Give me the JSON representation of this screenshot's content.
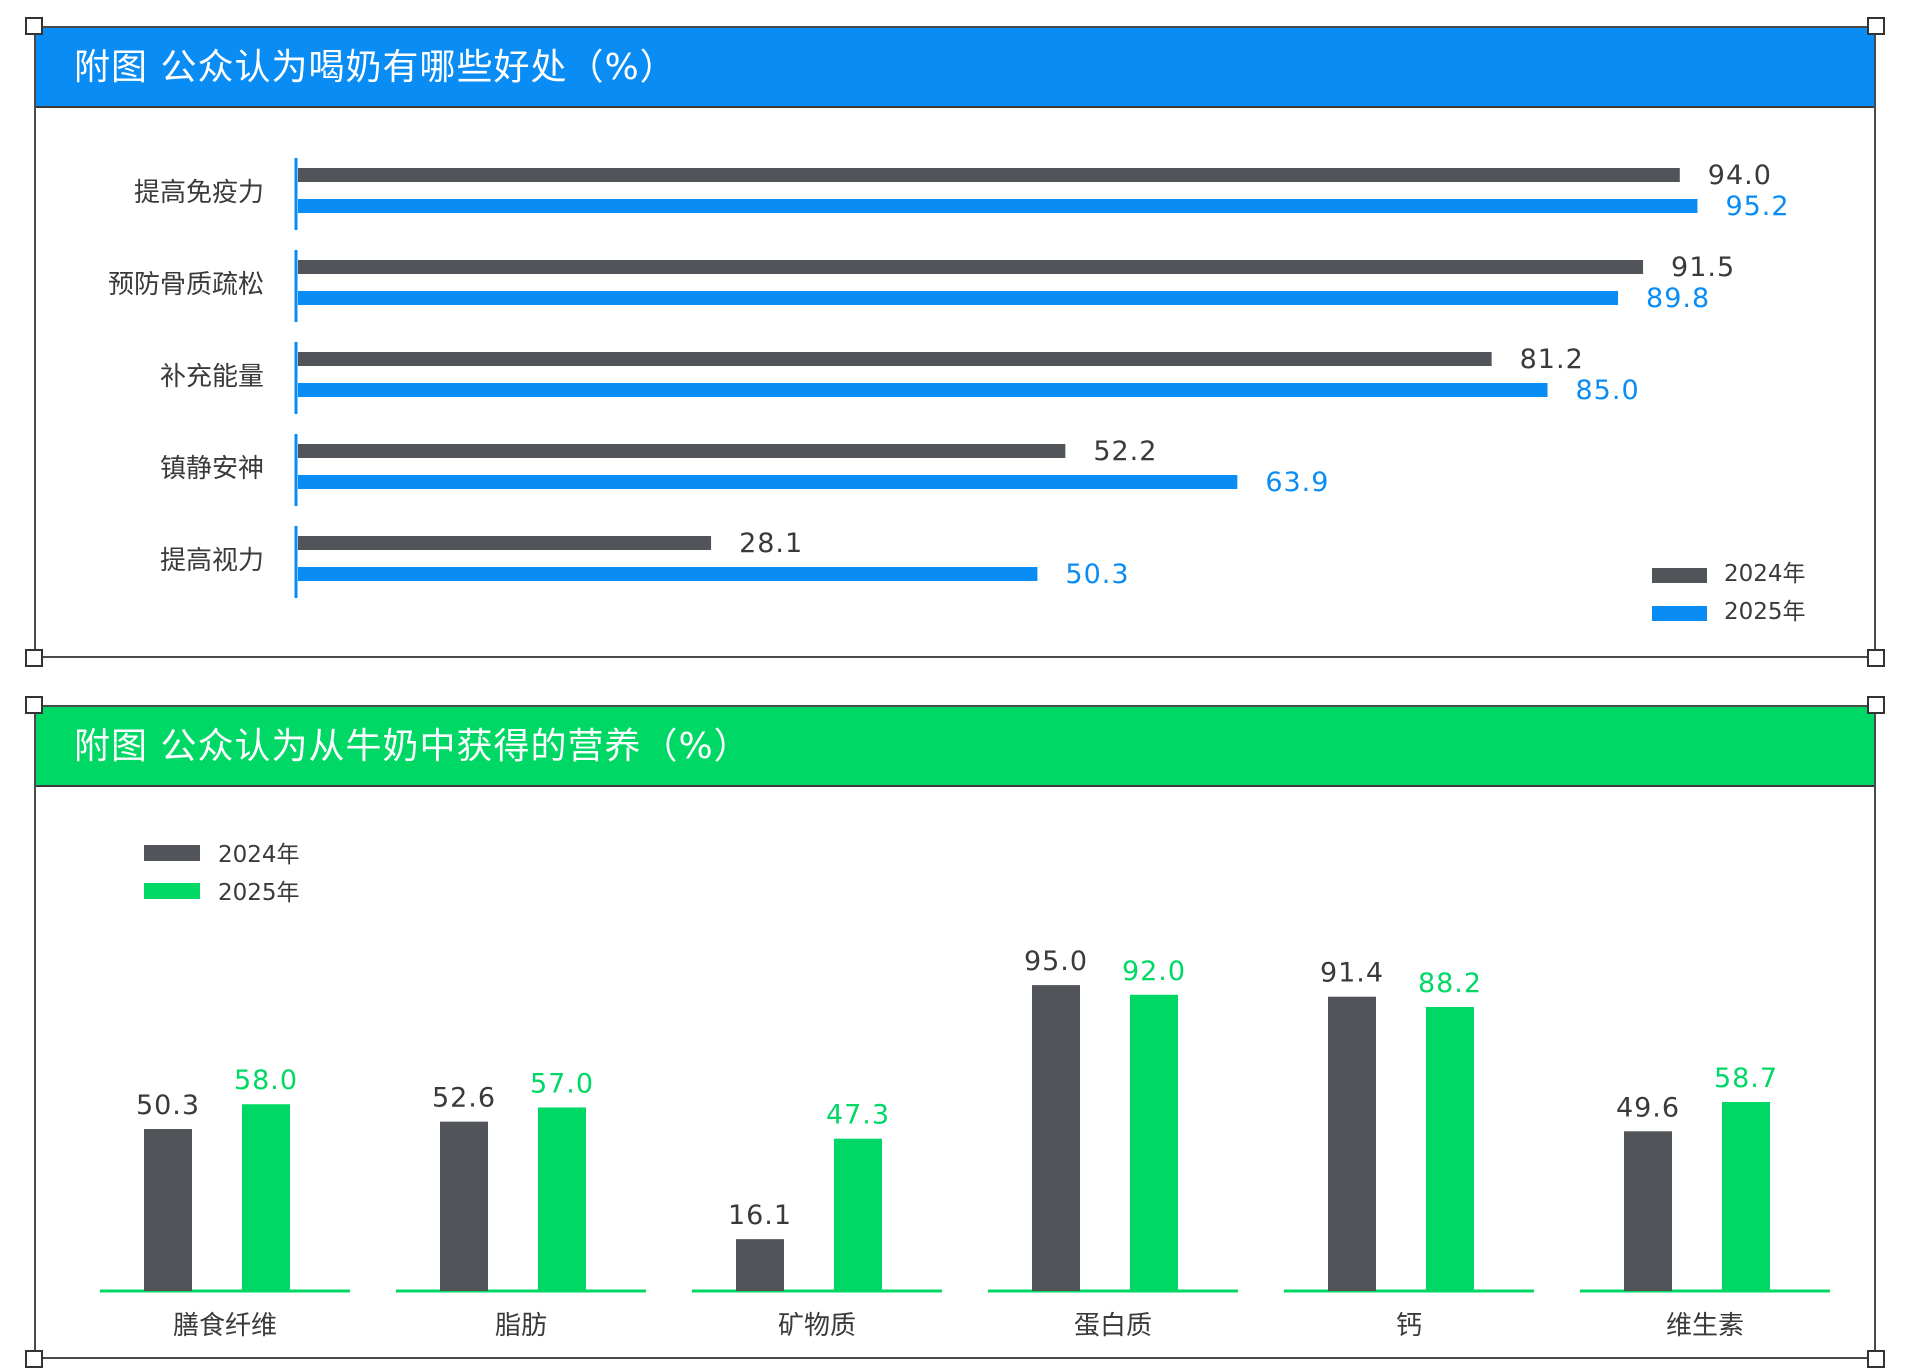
{
  "panels": {
    "top": {
      "title": "附图  公众认为喝奶有哪些好处（%）"
    },
    "bottom": {
      "title": "附图   公众认为从牛奶中获得的营养（%）"
    }
  },
  "colors": {
    "dark": "#515459",
    "blue": "#0a8cf5",
    "green": "#00d865"
  },
  "chart_data": [
    {
      "type": "bar",
      "orientation": "horizontal",
      "title": "附图  公众认为喝奶有哪些好处（%）",
      "categories": [
        "提高免疫力",
        "预防骨质疏松",
        "补充能量",
        "镇静安神",
        "提高视力"
      ],
      "series": [
        {
          "name": "2024年",
          "color": "#515459",
          "values": [
            94.0,
            91.5,
            81.2,
            52.2,
            28.1
          ]
        },
        {
          "name": "2025年",
          "color": "#0a8cf5",
          "values": [
            95.2,
            89.8,
            85.0,
            63.9,
            50.3
          ]
        }
      ],
      "legend_position": "bottom-right",
      "grid": false
    },
    {
      "type": "bar",
      "orientation": "vertical",
      "title": "附图   公众认为从牛奶中获得的营养（%）",
      "categories": [
        "膳食纤维",
        "脂肪",
        "矿物质",
        "蛋白质",
        "钙",
        "维生素"
      ],
      "series": [
        {
          "name": "2024年",
          "color": "#515459",
          "values": [
            50.3,
            52.6,
            16.1,
            95.0,
            91.4,
            49.6
          ]
        },
        {
          "name": "2025年",
          "color": "#00d865",
          "values": [
            58.0,
            57.0,
            47.3,
            92.0,
            88.2,
            58.7
          ]
        }
      ],
      "legend_position": "top-left",
      "grid": false
    }
  ]
}
